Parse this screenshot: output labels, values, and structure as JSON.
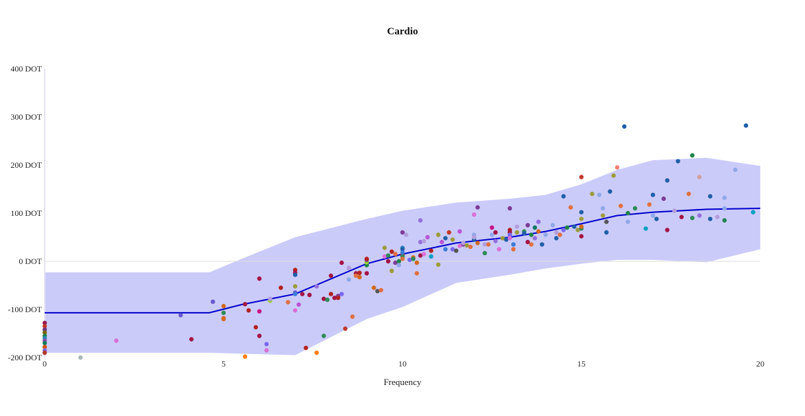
{
  "chart_data": {
    "type": "scatter",
    "title": "Cardio",
    "xlabel": "Frequency",
    "ylabel": "",
    "xlim": [
      0,
      20
    ],
    "ylim": [
      -200,
      400
    ],
    "x_ticks": [
      0,
      5,
      10,
      15,
      20
    ],
    "y_ticks": [
      -200,
      -100,
      0,
      100,
      200,
      300,
      400
    ],
    "y_tick_suffix": " DOT",
    "grid": false,
    "zero_line": true,
    "legend": "none",
    "band_color": "#a9a9f7",
    "trend_color": "#0000cc",
    "trend": {
      "x": [
        0,
        4.6,
        5.5,
        7,
        9,
        10,
        11.5,
        13,
        14,
        15,
        16,
        17,
        18.5,
        20
      ],
      "y": [
        -107,
        -107,
        -90,
        -68,
        -5,
        15,
        38,
        50,
        62,
        78,
        95,
        102,
        108,
        110
      ]
    },
    "band_upper": {
      "x": [
        0,
        4.6,
        5.5,
        7,
        9,
        10,
        11.5,
        13,
        14,
        15,
        16,
        17,
        18.5,
        20
      ],
      "y": [
        -23,
        -23,
        5,
        50,
        88,
        105,
        122,
        130,
        138,
        160,
        190,
        210,
        215,
        198
      ]
    },
    "band_lower": {
      "x": [
        0,
        4.6,
        5.5,
        7,
        9,
        10,
        11.5,
        13,
        14,
        15,
        16,
        17,
        18.5,
        20
      ],
      "y": [
        -190,
        -190,
        -192,
        -195,
        -120,
        -95,
        -45,
        -28,
        -15,
        -5,
        3,
        3,
        -2,
        25
      ]
    },
    "points": [
      {
        "x": 0,
        "y": -128,
        "c": "#9b1d4f"
      },
      {
        "x": 0,
        "y": -135,
        "c": "#c0392b"
      },
      {
        "x": 0,
        "y": -142,
        "c": "#6c3483"
      },
      {
        "x": 0,
        "y": -148,
        "c": "#7d6608"
      },
      {
        "x": 0,
        "y": -155,
        "c": "#1e8449"
      },
      {
        "x": 0,
        "y": -160,
        "c": "#2e86c1"
      },
      {
        "x": 0,
        "y": -165,
        "c": "#884ea0"
      },
      {
        "x": 0,
        "y": -170,
        "c": "#117a65"
      },
      {
        "x": 0,
        "y": -178,
        "c": "#d35400"
      },
      {
        "x": 0,
        "y": -185,
        "c": "#7b68ee"
      },
      {
        "x": 0,
        "y": -190,
        "c": "#b03a2e"
      },
      {
        "x": 1,
        "y": -200,
        "c": "#aab7b8"
      },
      {
        "x": 2,
        "y": -165,
        "c": "#da70d6"
      },
      {
        "x": 3.8,
        "y": -112,
        "c": "#6a5acd"
      },
      {
        "x": 4.1,
        "y": -162,
        "c": "#a31545"
      },
      {
        "x": 4.7,
        "y": -84,
        "c": "#6a5acd"
      },
      {
        "x": 5,
        "y": -93,
        "c": "#d2691e"
      },
      {
        "x": 5,
        "y": -107,
        "c": "#2e8b57"
      },
      {
        "x": 5,
        "y": -118,
        "c": "#e07040"
      },
      {
        "x": 5,
        "y": -120,
        "c": "#d2691e"
      },
      {
        "x": 5.6,
        "y": -198,
        "c": "#ff7f0e"
      },
      {
        "x": 5.6,
        "y": -89,
        "c": "#a31545"
      },
      {
        "x": 5.7,
        "y": -102,
        "c": "#b22222"
      },
      {
        "x": 5.9,
        "y": -137,
        "c": "#b22222"
      },
      {
        "x": 6,
        "y": -36,
        "c": "#a31545"
      },
      {
        "x": 6,
        "y": -104,
        "c": "#c71585"
      },
      {
        "x": 6,
        "y": -155,
        "c": "#a31545"
      },
      {
        "x": 6.2,
        "y": -172,
        "c": "#7b68ee"
      },
      {
        "x": 6.2,
        "y": -185,
        "c": "#da70d6"
      },
      {
        "x": 6.3,
        "y": -82,
        "c": "#9acd32"
      },
      {
        "x": 6.3,
        "y": -78,
        "c": "#b39ddb"
      },
      {
        "x": 6.6,
        "y": -55,
        "c": "#b22222"
      },
      {
        "x": 6.8,
        "y": -85,
        "c": "#e07040"
      },
      {
        "x": 7,
        "y": -18,
        "c": "#b22222"
      },
      {
        "x": 7,
        "y": -24,
        "c": "#a31545"
      },
      {
        "x": 7,
        "y": -28,
        "c": "#1f5fa8"
      },
      {
        "x": 7,
        "y": -52,
        "c": "#9c9c3c"
      },
      {
        "x": 7,
        "y": -65,
        "c": "#6a5acd"
      },
      {
        "x": 7,
        "y": -68,
        "c": "#3b7dd8"
      },
      {
        "x": 7,
        "y": -102,
        "c": "#da70d6"
      },
      {
        "x": 7.1,
        "y": -90,
        "c": "#ba55d3"
      },
      {
        "x": 7.2,
        "y": -68,
        "c": "#a31545"
      },
      {
        "x": 7.3,
        "y": -180,
        "c": "#b22222"
      },
      {
        "x": 7.4,
        "y": -70,
        "c": "#a31545"
      },
      {
        "x": 7.6,
        "y": -52,
        "c": "#9370db"
      },
      {
        "x": 7.6,
        "y": -190,
        "c": "#ff7f0e"
      },
      {
        "x": 7.8,
        "y": -78,
        "c": "#a31545"
      },
      {
        "x": 7.8,
        "y": -155,
        "c": "#2e8b57"
      },
      {
        "x": 7.9,
        "y": -80,
        "c": "#2e8b57"
      },
      {
        "x": 8,
        "y": -30,
        "c": "#a31545"
      },
      {
        "x": 8,
        "y": -68,
        "c": "#b22222"
      },
      {
        "x": 8.1,
        "y": -76,
        "c": "#a31545"
      },
      {
        "x": 8.2,
        "y": -72,
        "c": "#7d3c98"
      },
      {
        "x": 8.2,
        "y": -76,
        "c": "#b22222"
      },
      {
        "x": 8.3,
        "y": -68,
        "c": "#7b68ee"
      },
      {
        "x": 8.3,
        "y": -3,
        "c": "#a31545"
      },
      {
        "x": 8.4,
        "y": -140,
        "c": "#c0392b"
      },
      {
        "x": 8.5,
        "y": -14,
        "c": "#b39ddb"
      },
      {
        "x": 8.5,
        "y": -38,
        "c": "#8fa8e8"
      },
      {
        "x": 8.6,
        "y": -115,
        "c": "#e07040"
      },
      {
        "x": 8.7,
        "y": -25,
        "c": "#a31545"
      },
      {
        "x": 8.7,
        "y": -30,
        "c": "#e07040"
      },
      {
        "x": 8.8,
        "y": -33,
        "c": "#d2691e"
      },
      {
        "x": 8.8,
        "y": -24,
        "c": "#b22222"
      },
      {
        "x": 9,
        "y": -25,
        "c": "#a31545"
      },
      {
        "x": 9,
        "y": -8,
        "c": "#1e8449"
      },
      {
        "x": 9,
        "y": -2,
        "c": "#9acd32"
      },
      {
        "x": 9,
        "y": 3,
        "c": "#7d3c98"
      },
      {
        "x": 9,
        "y": 5,
        "c": "#b22222"
      },
      {
        "x": 9.2,
        "y": -55,
        "c": "#d2691e"
      },
      {
        "x": 9.3,
        "y": -62,
        "c": "#555555"
      },
      {
        "x": 9.4,
        "y": -60,
        "c": "#e07040"
      },
      {
        "x": 9.5,
        "y": 28,
        "c": "#9c9c3c"
      },
      {
        "x": 9.5,
        "y": 10,
        "c": "#da70d6"
      },
      {
        "x": 9.6,
        "y": 0,
        "c": "#a31545"
      },
      {
        "x": 9.6,
        "y": 12,
        "c": "#2e8b57"
      },
      {
        "x": 9.7,
        "y": 20,
        "c": "#b22222"
      },
      {
        "x": 9.7,
        "y": -20,
        "c": "#9c9c3c"
      },
      {
        "x": 9.8,
        "y": 15,
        "c": "#e07040"
      },
      {
        "x": 9.8,
        "y": -3,
        "c": "#7d3c98"
      },
      {
        "x": 9.9,
        "y": 0,
        "c": "#1e8449"
      },
      {
        "x": 9.9,
        "y": -8,
        "c": "#8fa8e8"
      },
      {
        "x": 10,
        "y": 60,
        "c": "#7d3c98"
      },
      {
        "x": 10,
        "y": 28,
        "c": "#2e86c1"
      },
      {
        "x": 10,
        "y": 25,
        "c": "#1f5fa8"
      },
      {
        "x": 10,
        "y": 14,
        "c": "#b22222"
      },
      {
        "x": 10,
        "y": 10,
        "c": "#2e8b57"
      },
      {
        "x": 10,
        "y": 5,
        "c": "#e07040"
      },
      {
        "x": 10,
        "y": 18,
        "c": "#3b7dd8"
      },
      {
        "x": 10.1,
        "y": 55,
        "c": "#b39ddb"
      },
      {
        "x": 10.2,
        "y": 3,
        "c": "#7b68ee"
      },
      {
        "x": 10.3,
        "y": 8,
        "c": "#d2691e"
      },
      {
        "x": 10.3,
        "y": 5,
        "c": "#2e8b57"
      },
      {
        "x": 10.4,
        "y": -25,
        "c": "#e07040"
      },
      {
        "x": 10.4,
        "y": -3,
        "c": "#d2691e"
      },
      {
        "x": 10.5,
        "y": 40,
        "c": "#9370db"
      },
      {
        "x": 10.5,
        "y": 12,
        "c": "#a31545"
      },
      {
        "x": 10.5,
        "y": 85,
        "c": "#9370db"
      },
      {
        "x": 10.6,
        "y": 42,
        "c": "#b39ddb"
      },
      {
        "x": 10.6,
        "y": 15,
        "c": "#da70d6"
      },
      {
        "x": 10.7,
        "y": 50,
        "c": "#ba55d3"
      },
      {
        "x": 10.8,
        "y": 10,
        "c": "#00a0c0"
      },
      {
        "x": 10.8,
        "y": 22,
        "c": "#b22222"
      },
      {
        "x": 11,
        "y": -7,
        "c": "#9c9c3c"
      },
      {
        "x": 11,
        "y": 55,
        "c": "#9c9c3c"
      },
      {
        "x": 11.1,
        "y": 40,
        "c": "#ba55d3"
      },
      {
        "x": 11.2,
        "y": 25,
        "c": "#3b7dd8"
      },
      {
        "x": 11.2,
        "y": 48,
        "c": "#1f5fa8"
      },
      {
        "x": 11.3,
        "y": 60,
        "c": "#c0392b"
      },
      {
        "x": 11.4,
        "y": 25,
        "c": "#7b68ee"
      },
      {
        "x": 11.4,
        "y": 45,
        "c": "#9c9c3c"
      },
      {
        "x": 11.5,
        "y": 22,
        "c": "#555555"
      },
      {
        "x": 11.6,
        "y": 32,
        "c": "#da70d6"
      },
      {
        "x": 11.6,
        "y": 62,
        "c": "#ba55d3"
      },
      {
        "x": 11.7,
        "y": 35,
        "c": "#7d3c98"
      },
      {
        "x": 11.7,
        "y": 38,
        "c": "#b39ddb"
      },
      {
        "x": 11.8,
        "y": 33,
        "c": "#9c9c3c"
      },
      {
        "x": 11.9,
        "y": 30,
        "c": "#e07040"
      },
      {
        "x": 12,
        "y": 97,
        "c": "#da70d6"
      },
      {
        "x": 12,
        "y": 55,
        "c": "#8fa8e8"
      },
      {
        "x": 12,
        "y": 45,
        "c": "#1f5fa8"
      },
      {
        "x": 12,
        "y": 50,
        "c": "#b39ddb"
      },
      {
        "x": 12.1,
        "y": 112,
        "c": "#7d3c98"
      },
      {
        "x": 12.1,
        "y": 38,
        "c": "#d2691e"
      },
      {
        "x": 12.3,
        "y": 35,
        "c": "#b39ddb"
      },
      {
        "x": 12.3,
        "y": 17,
        "c": "#2e8b57"
      },
      {
        "x": 12.4,
        "y": 35,
        "c": "#e07040"
      },
      {
        "x": 12.5,
        "y": 55,
        "c": "#8fa8e8"
      },
      {
        "x": 12.5,
        "y": 70,
        "c": "#c71585"
      },
      {
        "x": 12.6,
        "y": 42,
        "c": "#9370db"
      },
      {
        "x": 12.6,
        "y": 60,
        "c": "#a31545"
      },
      {
        "x": 12.7,
        "y": 25,
        "c": "#da70d6"
      },
      {
        "x": 12.8,
        "y": 48,
        "c": "#9c9c3c"
      },
      {
        "x": 12.9,
        "y": 45,
        "c": "#1f5fa8"
      },
      {
        "x": 13,
        "y": 110,
        "c": "#7d3c98"
      },
      {
        "x": 13,
        "y": 65,
        "c": "#b22222"
      },
      {
        "x": 13,
        "y": 60,
        "c": "#a31545"
      },
      {
        "x": 13,
        "y": 55,
        "c": "#7b68ee"
      },
      {
        "x": 13,
        "y": 48,
        "c": "#da70d6"
      },
      {
        "x": 13.1,
        "y": 25,
        "c": "#e07040"
      },
      {
        "x": 13.1,
        "y": 35,
        "c": "#3b7dd8"
      },
      {
        "x": 13.2,
        "y": 60,
        "c": "#9c9c3c"
      },
      {
        "x": 13.2,
        "y": 72,
        "c": "#b39ddb"
      },
      {
        "x": 13.4,
        "y": 62,
        "c": "#2e8b57"
      },
      {
        "x": 13.4,
        "y": 58,
        "c": "#1f5fa8"
      },
      {
        "x": 13.5,
        "y": 75,
        "c": "#7d3c98"
      },
      {
        "x": 13.5,
        "y": 40,
        "c": "#a31545"
      },
      {
        "x": 13.6,
        "y": 55,
        "c": "#1e8449"
      },
      {
        "x": 13.6,
        "y": 35,
        "c": "#e07040"
      },
      {
        "x": 13.7,
        "y": 48,
        "c": "#9370db"
      },
      {
        "x": 13.7,
        "y": 70,
        "c": "#117a65"
      },
      {
        "x": 13.8,
        "y": 82,
        "c": "#9370db"
      },
      {
        "x": 13.8,
        "y": 62,
        "c": "#d2691e"
      },
      {
        "x": 13.9,
        "y": 35,
        "c": "#1f5fa8"
      },
      {
        "x": 14,
        "y": 55,
        "c": "#8fa8e8"
      },
      {
        "x": 14.2,
        "y": 75,
        "c": "#8fa8e8"
      },
      {
        "x": 14.3,
        "y": 48,
        "c": "#1f5fa8"
      },
      {
        "x": 14.3,
        "y": 60,
        "c": "#b39ddb"
      },
      {
        "x": 14.5,
        "y": 135,
        "c": "#1f5fa8"
      },
      {
        "x": 14.4,
        "y": 55,
        "c": "#e07040"
      },
      {
        "x": 14.5,
        "y": 65,
        "c": "#7b68ee"
      },
      {
        "x": 14.6,
        "y": 70,
        "c": "#1e8449"
      },
      {
        "x": 14.7,
        "y": 112,
        "c": "#e07040"
      },
      {
        "x": 14.8,
        "y": 72,
        "c": "#1f5fa8"
      },
      {
        "x": 14.9,
        "y": 65,
        "c": "#9c9c3c"
      },
      {
        "x": 15,
        "y": 175,
        "c": "#c0392b"
      },
      {
        "x": 15,
        "y": 102,
        "c": "#1f5fa8"
      },
      {
        "x": 15,
        "y": 88,
        "c": "#9c9c3c"
      },
      {
        "x": 15,
        "y": 68,
        "c": "#2e8b57"
      },
      {
        "x": 15,
        "y": 52,
        "c": "#a31545"
      },
      {
        "x": 15,
        "y": 72,
        "c": "#d2691e"
      },
      {
        "x": 15.3,
        "y": 140,
        "c": "#9c9c3c"
      },
      {
        "x": 15.5,
        "y": 138,
        "c": "#8fa8e8"
      },
      {
        "x": 15.6,
        "y": 110,
        "c": "#8fa8e8"
      },
      {
        "x": 15.6,
        "y": 95,
        "c": "#9c9c3c"
      },
      {
        "x": 15.7,
        "y": 60,
        "c": "#1f5fa8"
      },
      {
        "x": 15.7,
        "y": 82,
        "c": "#555555"
      },
      {
        "x": 15.8,
        "y": 145,
        "c": "#1f5fa8"
      },
      {
        "x": 15.9,
        "y": 178,
        "c": "#9c9c3c"
      },
      {
        "x": 16,
        "y": 195,
        "c": "#fa8072"
      },
      {
        "x": 16.1,
        "y": 115,
        "c": "#e07040"
      },
      {
        "x": 16.2,
        "y": 280,
        "c": "#1f5fa8"
      },
      {
        "x": 16.3,
        "y": 82,
        "c": "#8fa8e8"
      },
      {
        "x": 16.3,
        "y": 100,
        "c": "#1e8449"
      },
      {
        "x": 16.5,
        "y": 110,
        "c": "#2e8b57"
      },
      {
        "x": 16.8,
        "y": 68,
        "c": "#00a0c0"
      },
      {
        "x": 16.9,
        "y": 118,
        "c": "#e07040"
      },
      {
        "x": 17,
        "y": 95,
        "c": "#8fa8e8"
      },
      {
        "x": 17,
        "y": 138,
        "c": "#1f5fa8"
      },
      {
        "x": 17.1,
        "y": 88,
        "c": "#1f5fa8"
      },
      {
        "x": 17.3,
        "y": 130,
        "c": "#7d3c98"
      },
      {
        "x": 17.4,
        "y": 65,
        "c": "#a31545"
      },
      {
        "x": 17.4,
        "y": 168,
        "c": "#1f5fa8"
      },
      {
        "x": 17.6,
        "y": 105,
        "c": "#b39ddb"
      },
      {
        "x": 17.7,
        "y": 208,
        "c": "#1f5fa8"
      },
      {
        "x": 17.8,
        "y": 92,
        "c": "#a31545"
      },
      {
        "x": 18,
        "y": 140,
        "c": "#e07040"
      },
      {
        "x": 18.1,
        "y": 220,
        "c": "#1e8449"
      },
      {
        "x": 18.1,
        "y": 90,
        "c": "#2e8b57"
      },
      {
        "x": 18.3,
        "y": 175,
        "c": "#d4a0a0"
      },
      {
        "x": 18.3,
        "y": 95,
        "c": "#9370db"
      },
      {
        "x": 18.6,
        "y": 135,
        "c": "#1f5fa8"
      },
      {
        "x": 18.6,
        "y": 88,
        "c": "#1f5fa8"
      },
      {
        "x": 18.8,
        "y": 92,
        "c": "#b39ddb"
      },
      {
        "x": 19,
        "y": 132,
        "c": "#8fa8e8"
      },
      {
        "x": 19,
        "y": 110,
        "c": "#8fa8e8"
      },
      {
        "x": 19,
        "y": 85,
        "c": "#1e8449"
      },
      {
        "x": 19.3,
        "y": 190,
        "c": "#8fa8e8"
      },
      {
        "x": 19.6,
        "y": 282,
        "c": "#1f5fa8"
      },
      {
        "x": 19.8,
        "y": 102,
        "c": "#00a0c0"
      }
    ]
  }
}
